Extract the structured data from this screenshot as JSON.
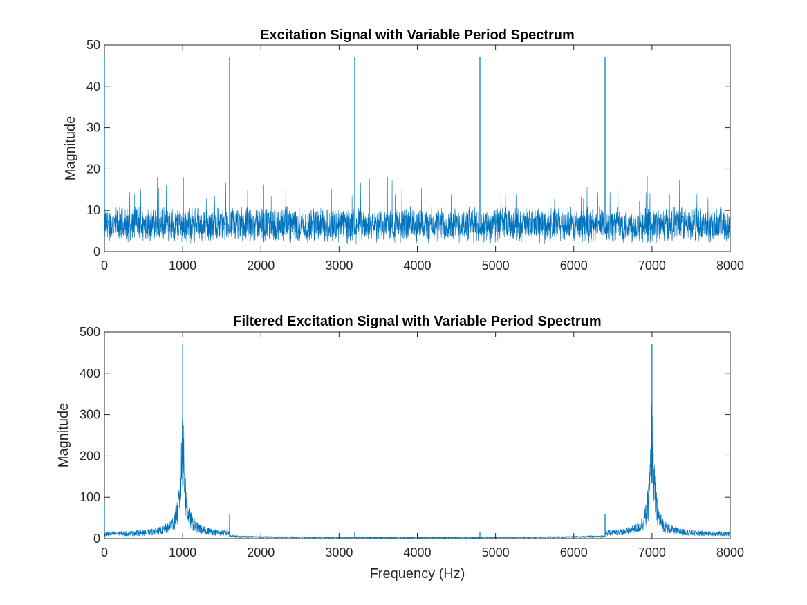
{
  "colors": {
    "series": "#0072BD",
    "axes": "#262626",
    "background": "#ffffff"
  },
  "chart_data": [
    {
      "type": "line",
      "title": "Excitation Signal with Variable Period Spectrum",
      "xlabel": "",
      "ylabel": "Magnitude",
      "xlim": [
        0,
        8000
      ],
      "ylim": [
        0,
        50
      ],
      "xticks": [
        0,
        1000,
        2000,
        3000,
        4000,
        5000,
        6000,
        7000,
        8000
      ],
      "yticks": [
        0,
        10,
        20,
        30,
        40,
        50
      ],
      "grid": false,
      "series": [
        {
          "noise_band": {
            "center": 6.5,
            "spread": 4,
            "max_peak": 18.5,
            "x_start": 0,
            "x_end": 8000,
            "dx": 2
          },
          "spikes": [
            {
              "x": 0,
              "y": 47
            },
            {
              "x": 1600,
              "y": 47
            },
            {
              "x": 3200,
              "y": 47
            },
            {
              "x": 4800,
              "y": 47
            },
            {
              "x": 6400,
              "y": 47
            }
          ],
          "dips": [
            1600,
            3200,
            4800,
            6400
          ]
        }
      ]
    },
    {
      "type": "line",
      "title": "Filtered Excitation Signal with Variable Period Spectrum",
      "xlabel": "Frequency (Hz)",
      "ylabel": "Magnitude",
      "xlim": [
        0,
        8000
      ],
      "ylim": [
        0,
        500
      ],
      "xticks": [
        0,
        1000,
        2000,
        3000,
        4000,
        5000,
        6000,
        7000,
        8000
      ],
      "yticks": [
        0,
        100,
        200,
        300,
        400,
        500
      ],
      "grid": false,
      "series": [
        {
          "resonances": [
            {
              "x": 1000,
              "peak": 470
            },
            {
              "x": 7000,
              "peak": 470
            }
          ],
          "spikes": [
            {
              "x": 0,
              "y": 80
            },
            {
              "x": 1600,
              "y": 60
            },
            {
              "x": 3200,
              "y": 15
            },
            {
              "x": 4800,
              "y": 15
            },
            {
              "x": 6400,
              "y": 60
            }
          ],
          "x_start": 0,
          "x_end": 8000,
          "dx": 2
        }
      ]
    }
  ]
}
